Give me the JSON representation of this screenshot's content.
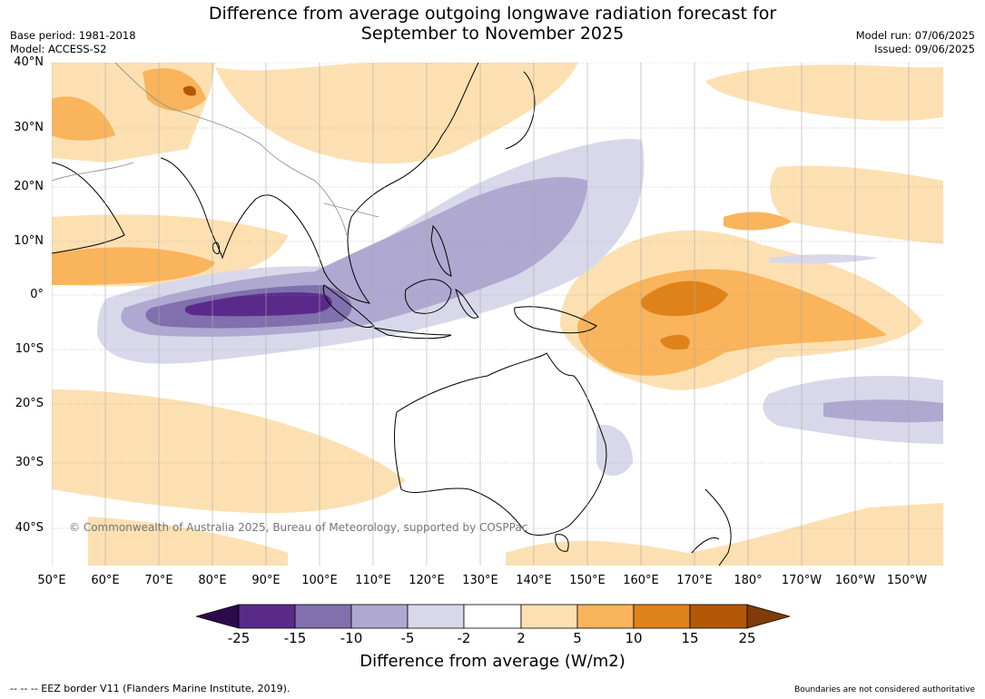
{
  "title": {
    "line1": "Difference from average outgoing longwave radiation forecast for",
    "line2": "September to November 2025"
  },
  "meta_left": {
    "base_period": "Base period: 1981-2018",
    "model": "Model: ACCESS-S2"
  },
  "meta_right": {
    "model_run": "Model run: 07/06/2025",
    "issued": "Issued: 09/06/2025"
  },
  "map": {
    "lat_labels": [
      "40°N",
      "30°N",
      "20°N",
      "10°N",
      "0°",
      "10°S",
      "20°S",
      "30°S",
      "40°S"
    ],
    "lon_labels": [
      "50°E",
      "60°E",
      "70°E",
      "80°E",
      "90°E",
      "100°E",
      "110°E",
      "120°E",
      "130°E",
      "140°E",
      "150°E",
      "160°E",
      "170°E",
      "180°",
      "170°W",
      "160°W",
      "150°W"
    ],
    "copyright": "© Commonwealth of Australia 2025, Bureau of Meteorology, supported by COSPPac",
    "colors": {
      "below_25": "#2d0a4e",
      "m25_m15": "#5a2a8a",
      "m15_m10": "#8070ad",
      "m10_m5": "#afa8d0",
      "m5_m2": "#d9d8ea",
      "m2_2": "#ffffff",
      "p2_5": "#fde0b2",
      "p5_10": "#f9b45c",
      "p10_15": "#e0821a",
      "p15_25": "#b35806",
      "above_25": "#7f3b08",
      "land_outline": "#000000",
      "border": "#888888"
    }
  },
  "colorbar": {
    "ticks": [
      "-25",
      "-15",
      "-10",
      "-5",
      "-2",
      "2",
      "5",
      "10",
      "15",
      "25"
    ],
    "title": "Difference from average (W/m2)"
  },
  "footer": {
    "eez": "--  --  -- EEZ border V11 (Flanders Marine Institute, 2019).",
    "boundaries": "Boundaries are not considered authoritative"
  }
}
